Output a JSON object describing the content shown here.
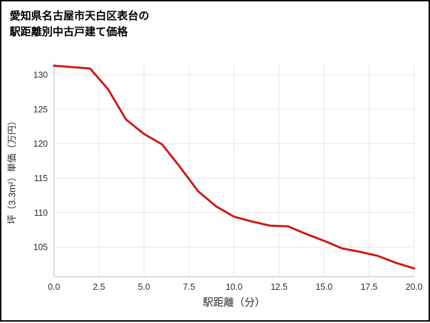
{
  "title": {
    "line1": "愛知県名古屋市天白区表台の",
    "line2": "駅距離別中古戸建て価格"
  },
  "chart_data": {
    "type": "line",
    "title": "愛知県名古屋市天白区表台の駅距離別中古戸建て価格",
    "xlabel": "駅距離（分）",
    "ylabel": "坪（3.3m²）単価（万円）",
    "x": [
      0,
      1,
      2,
      3,
      4,
      5,
      6,
      7,
      8,
      9,
      10,
      11,
      12,
      13,
      14,
      15,
      16,
      17,
      18,
      19,
      20
    ],
    "y": [
      131.3,
      131.1,
      130.9,
      127.9,
      123.5,
      121.4,
      119.9,
      116.6,
      113.1,
      110.9,
      109.4,
      108.7,
      108.1,
      108.0,
      106.9,
      105.9,
      104.8,
      104.3,
      103.7,
      102.7,
      101.9
    ],
    "xlim": [
      0,
      20
    ],
    "ylim": [
      100.7,
      131.6
    ],
    "xticks": [
      0,
      2.5,
      5,
      7.5,
      10,
      12.5,
      15,
      17.5,
      20
    ],
    "xtick_labels": [
      "0.0",
      "2.5",
      "5.0",
      "7.5",
      "10.0",
      "12.5",
      "15.0",
      "17.5",
      "20.0"
    ],
    "yticks": [
      105,
      110,
      115,
      120,
      125,
      130
    ],
    "ytick_labels": [
      "105",
      "110",
      "115",
      "120",
      "125",
      "130"
    ],
    "grid": true,
    "legend": false,
    "line_color": "#d01616",
    "grid_color": "#e4e4e4",
    "axis_color": "#cfcfcf",
    "tick_label_color": "#2b2b2b",
    "axis_label_color": "#2b2b2b"
  }
}
